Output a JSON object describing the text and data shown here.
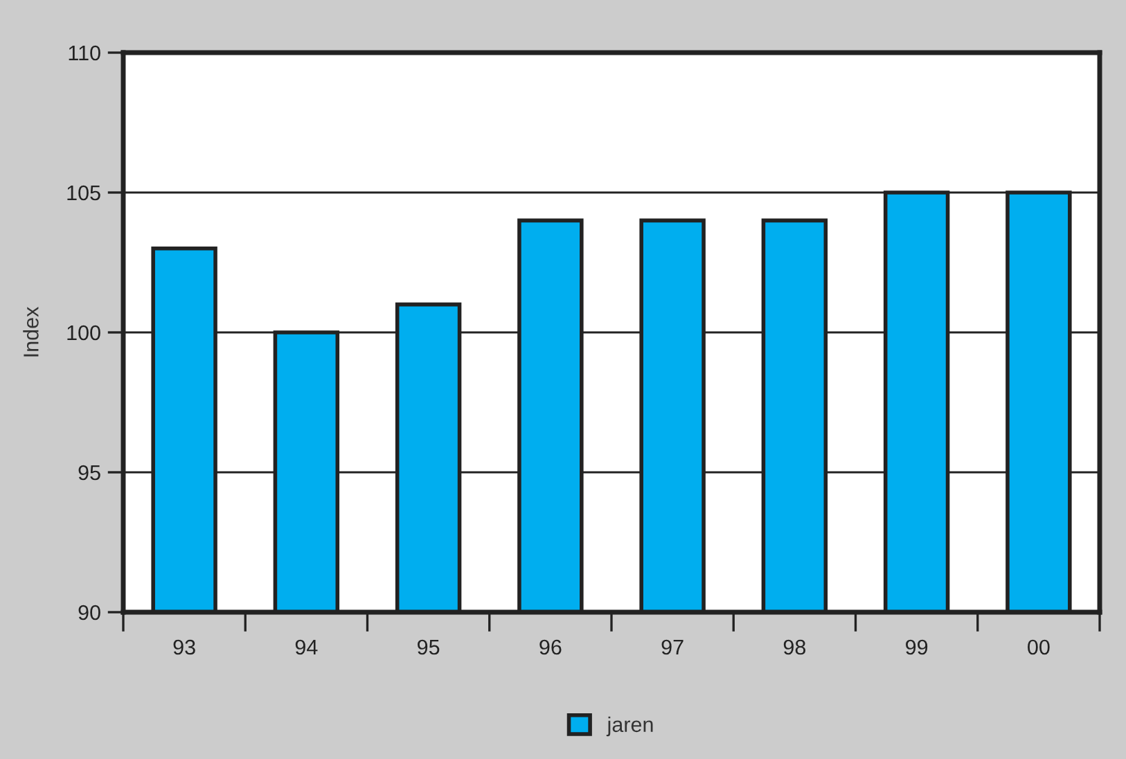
{
  "chart_data": {
    "type": "bar",
    "ylabel": "Index",
    "categories": [
      "93",
      "94",
      "95",
      "96",
      "97",
      "98",
      "99",
      "00"
    ],
    "series": [
      {
        "name": "jaren",
        "color": "#00aeef",
        "values": [
          103,
          100,
          101,
          104,
          104,
          104,
          105,
          105
        ]
      }
    ],
    "ylim": [
      90,
      110
    ],
    "yticks": [
      90,
      95,
      100,
      105,
      110
    ],
    "grid": "y",
    "legend": "bottom"
  }
}
